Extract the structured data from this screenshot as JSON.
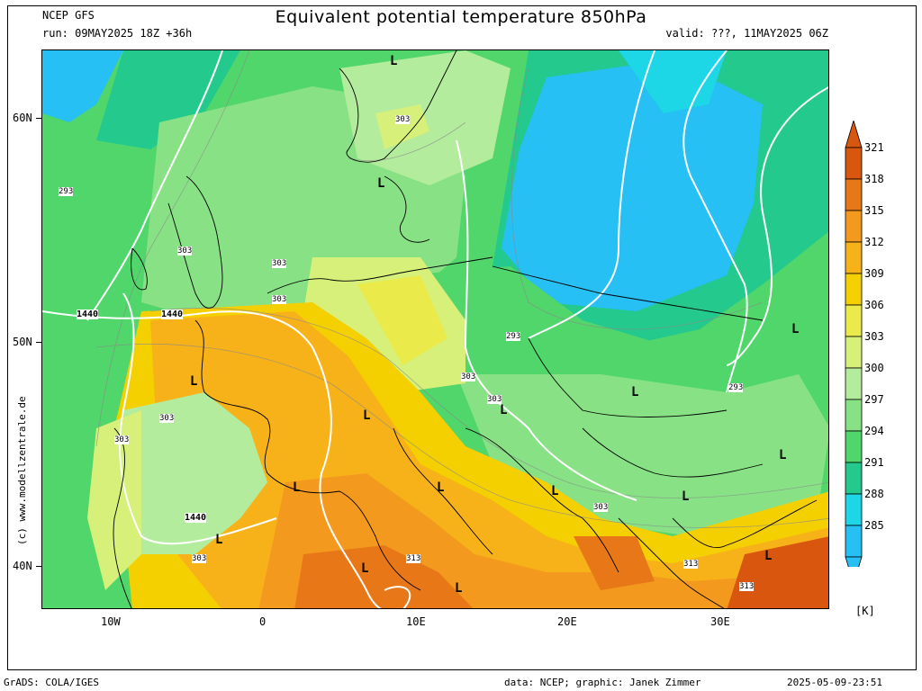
{
  "header": {
    "model": "NCEP GFS",
    "run": "run: 09MAY2025 18Z +36h",
    "title": "Equivalent potential temperature 850hPa",
    "valid": "valid: ???, 11MAY2025 06Z"
  },
  "footer": {
    "software": "GrADS: COLA/IGES",
    "credit": "data: NCEP; graphic: Janek Zimmer",
    "timestamp": "2025-05-09-23:51"
  },
  "watermark": "(c) www.modellzentrale.de",
  "axes": {
    "lat_labels": [
      "60N",
      "50N",
      "40N"
    ],
    "lon_labels": [
      "10W",
      "0",
      "10E",
      "20E",
      "30E"
    ]
  },
  "colorbar": {
    "unit": "[K]",
    "labels": [
      "321",
      "318",
      "315",
      "312",
      "309",
      "306",
      "303",
      "300",
      "297",
      "294",
      "291",
      "288",
      "285"
    ],
    "colors": [
      "#d9560f",
      "#e87817",
      "#f39a1e",
      "#f7b21a",
      "#f5d000",
      "#eaeb4a",
      "#d6f07a",
      "#b4ec9e",
      "#88e285",
      "#50d66a",
      "#24c98e",
      "#1dd6e6",
      "#26c0f5"
    ]
  },
  "map": {
    "contour_labels": {
      "isotherm_303": "303",
      "isotherm_293": "293",
      "isotherm_313": "313",
      "height_1440": "1440"
    },
    "low_marker": "L"
  }
}
